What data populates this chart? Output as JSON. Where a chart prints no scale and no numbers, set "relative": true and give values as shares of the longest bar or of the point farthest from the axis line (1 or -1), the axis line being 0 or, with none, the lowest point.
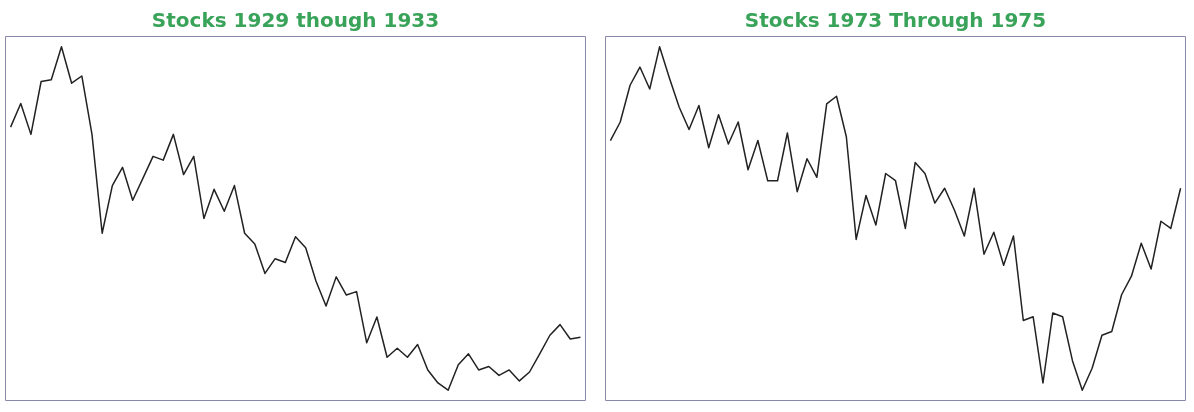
{
  "chart_data": [
    {
      "type": "line",
      "title": "Stocks 1929 though 1933",
      "relative": true,
      "tick_labels": false,
      "categories": [
        null,
        null,
        null,
        null,
        null,
        null,
        null,
        null,
        null,
        null,
        null,
        null,
        null,
        null,
        null,
        null,
        null,
        null,
        null,
        null,
        null,
        null,
        null,
        null,
        null,
        null,
        null,
        null,
        null,
        null,
        null,
        null,
        null,
        null,
        null,
        null,
        null,
        null,
        null,
        null,
        null,
        null,
        null,
        null,
        null,
        null,
        null,
        null,
        null,
        null,
        null,
        null,
        null,
        null,
        null,
        null,
        null
      ],
      "series": [
        {
          "color": "#222222",
          "values": [
            0.766,
            0.835,
            0.745,
            0.899,
            0.904,
            1.0,
            0.894,
            0.915,
            0.745,
            0.457,
            0.596,
            0.649,
            0.553,
            0.617,
            0.681,
            0.67,
            0.745,
            0.628,
            0.681,
            0.5,
            0.585,
            0.521,
            0.596,
            0.457,
            0.426,
            0.34,
            0.383,
            0.372,
            0.447,
            0.415,
            0.319,
            0.245,
            0.33,
            0.277,
            0.287,
            0.138,
            0.213,
            0.096,
            0.122,
            0.096,
            0.133,
            0.059,
            0.021,
            0,
            0.074,
            0.106,
            0.059,
            0.069,
            0.043,
            0.059,
            0.027,
            0.053,
            0.106,
            0.16,
            0.191,
            0.149,
            0.154
          ]
        }
      ]
    },
    {
      "type": "line",
      "title": "Stocks 1973 Through 1975",
      "relative": true,
      "tick_labels": false,
      "categories": [
        null,
        null,
        null,
        null,
        null,
        null,
        null,
        null,
        null,
        null,
        null,
        null,
        null,
        null,
        null,
        null,
        null,
        null,
        null,
        null,
        null,
        null,
        null,
        null,
        null,
        null,
        null,
        null,
        null,
        null,
        null,
        null,
        null,
        null,
        null,
        null,
        null,
        null,
        null,
        null,
        null,
        null,
        null,
        null,
        null,
        null,
        null,
        null,
        null,
        null,
        null,
        null,
        null,
        null,
        null,
        null,
        null,
        null,
        null
      ],
      "series": [
        {
          "color": "#222222",
          "values": [
            0.727,
            0.781,
            0.888,
            0.941,
            0.877,
            1.0,
            0.909,
            0.824,
            0.759,
            0.829,
            0.706,
            0.802,
            0.717,
            0.781,
            0.642,
            0.727,
            0.61,
            0.61,
            0.749,
            0.578,
            0.674,
            0.62,
            0.834,
            0.856,
            0.738,
            0.439,
            0.567,
            0.481,
            0.631,
            0.61,
            0.471,
            0.663,
            0.631,
            0.545,
            0.588,
            0.524,
            0.449,
            0.588,
            0.396,
            0.46,
            0.364,
            0.449,
            0.203,
            0.214,
            0.021,
            0.225,
            0.214,
            0.086,
            0,
            0.064,
            0.16,
            0.171,
            0.278,
            0.332,
            0.428,
            0.353,
            0.492,
            0.471,
            0.588
          ]
        }
      ]
    }
  ]
}
